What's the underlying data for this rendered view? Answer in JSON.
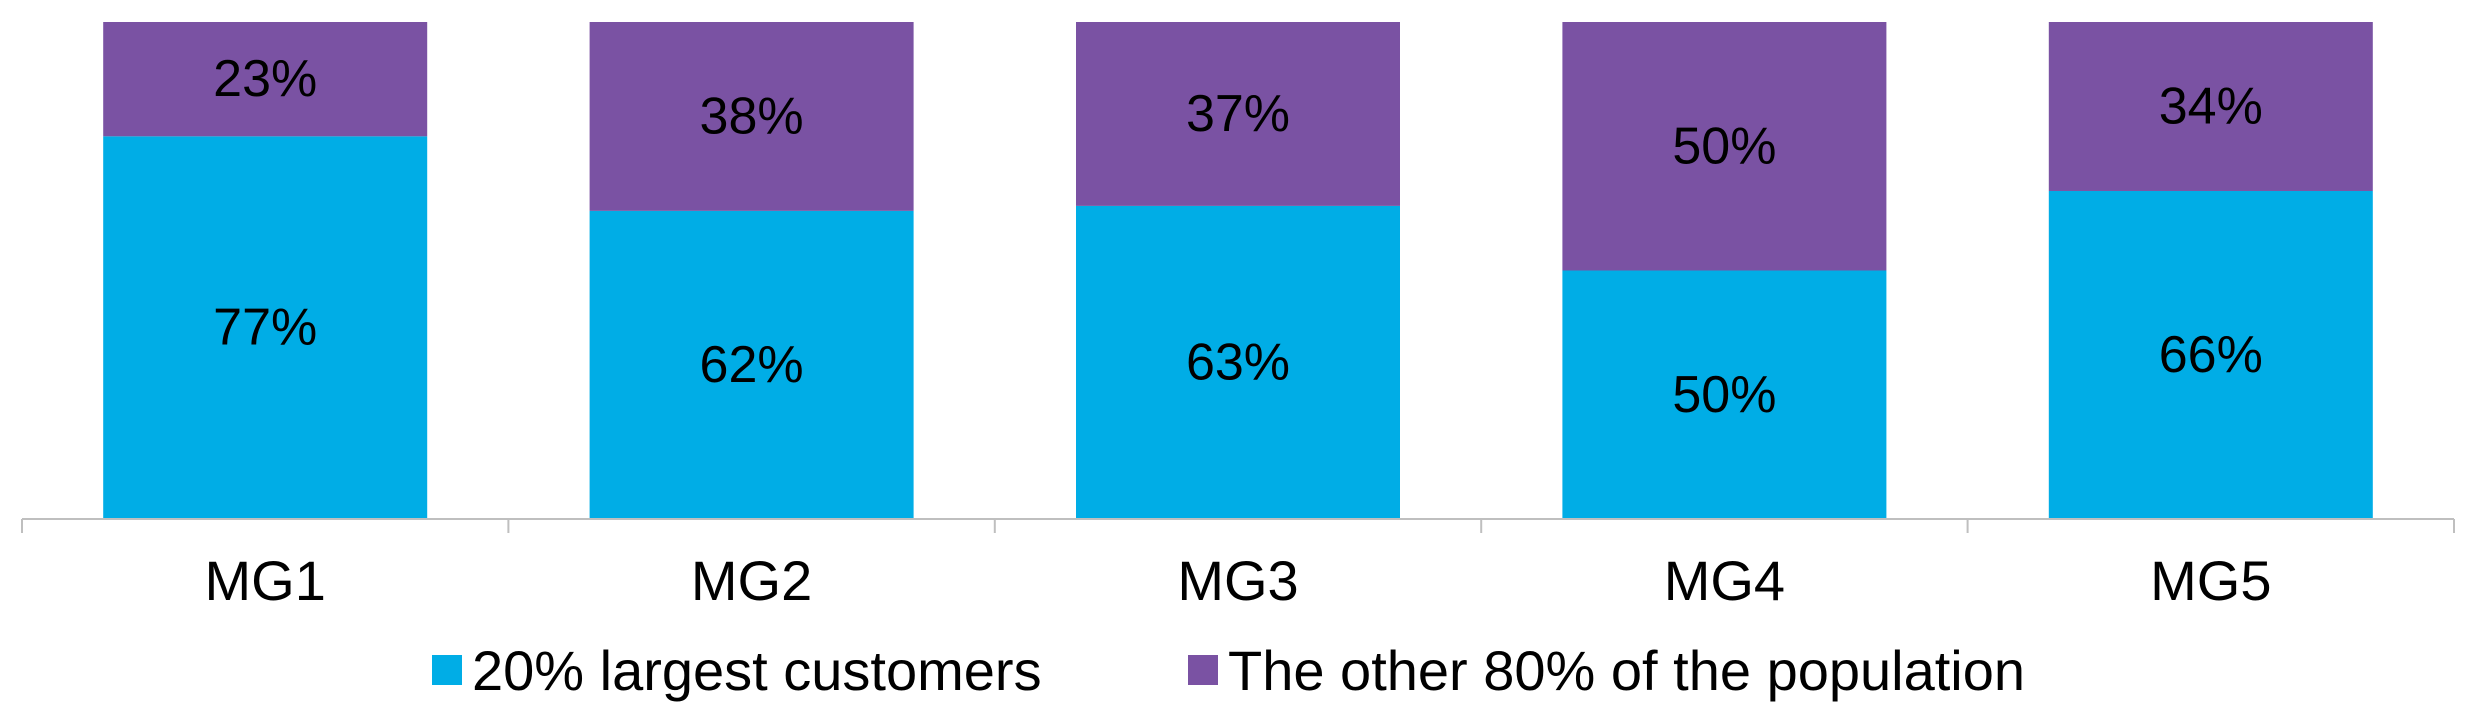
{
  "chart_data": {
    "type": "bar",
    "stacked": true,
    "normalized": true,
    "categories": [
      "MG1",
      "MG2",
      "MG3",
      "MG4",
      "MG5"
    ],
    "series": [
      {
        "name": "20% largest customers",
        "color": "#00ADE6",
        "values": [
          77,
          62,
          63,
          50,
          66
        ],
        "labels": [
          "77%",
          "62%",
          "63%",
          "50%",
          "66%"
        ]
      },
      {
        "name": "The other 80% of the population",
        "color": "#7A52A3",
        "values": [
          23,
          38,
          37,
          50,
          34
        ],
        "labels": [
          "23%",
          "38%",
          "37%",
          "50%",
          "34%"
        ]
      }
    ],
    "ylim": [
      0,
      100
    ],
    "grid": false,
    "legend": "bottom"
  }
}
